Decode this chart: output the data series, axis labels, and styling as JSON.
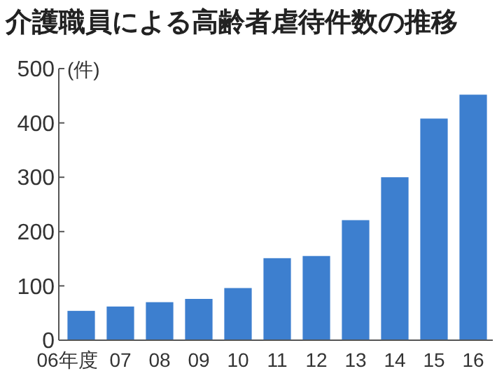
{
  "chart_data": {
    "type": "bar",
    "title": "介護職員による高齢者虐待件数の推移",
    "ylabel": "(件)",
    "categories": [
      "06年度",
      "07",
      "08",
      "09",
      "10",
      "11",
      "12",
      "13",
      "14",
      "15",
      "16"
    ],
    "values": [
      54,
      62,
      70,
      76,
      96,
      151,
      155,
      221,
      300,
      408,
      452
    ],
    "color": "#3d7fcf",
    "ylim": [
      0,
      500
    ],
    "yticks": [
      0,
      100,
      200,
      300,
      400,
      500
    ],
    "grid": false
  }
}
